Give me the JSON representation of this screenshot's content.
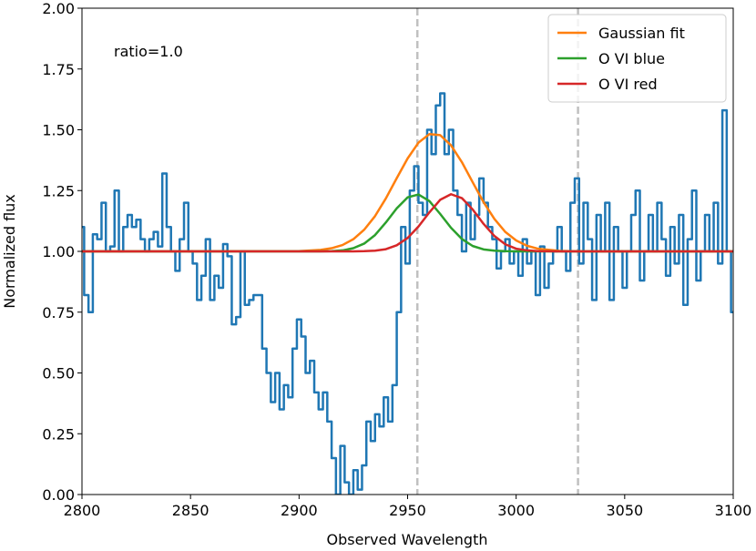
{
  "chart_data": {
    "type": "line",
    "xlabel": "Observed Wavelength",
    "ylabel": "Normalized flux",
    "annotation": "ratio=1.0",
    "xlim": [
      2800,
      3100
    ],
    "xticks": [
      2800,
      2850,
      2900,
      2950,
      3000,
      3050,
      3100
    ],
    "ylim": [
      0,
      2
    ],
    "yticks": [
      {
        "value": 0,
        "label": "0.00"
      },
      {
        "value": 0.25,
        "label": "0.25"
      },
      {
        "value": 0.5,
        "label": "0.50"
      },
      {
        "value": 0.75,
        "label": "0.75"
      },
      {
        "value": 1,
        "label": "1.00"
      },
      {
        "value": 1.25,
        "label": "1.25"
      },
      {
        "value": 1.5,
        "label": "1.50"
      },
      {
        "value": 1.75,
        "label": "1.75"
      },
      {
        "value": 2,
        "label": "2.00"
      }
    ],
    "vlines": [
      2954.5,
      3028.5
    ],
    "vline_color": "#c0c0c0",
    "legend": "upper right",
    "series": [
      {
        "color": "#1f77b4",
        "step": true,
        "x": [
          2800,
          2802,
          2804,
          2806,
          2808,
          2810,
          2812,
          2814,
          2816,
          2818,
          2820,
          2822,
          2824,
          2826,
          2828,
          2830,
          2832,
          2834,
          2836,
          2838,
          2840,
          2842,
          2844,
          2846,
          2848,
          2850,
          2852,
          2854,
          2856,
          2858,
          2860,
          2862,
          2864,
          2866,
          2868,
          2870,
          2872,
          2874,
          2876,
          2878,
          2880,
          2882,
          2884,
          2886,
          2888,
          2890,
          2892,
          2894,
          2896,
          2898,
          2900,
          2902,
          2904,
          2906,
          2908,
          2910,
          2912,
          2914,
          2916,
          2918,
          2920,
          2922,
          2924,
          2926,
          2928,
          2930,
          2932,
          2934,
          2936,
          2938,
          2940,
          2942,
          2944,
          2946,
          2948,
          2950,
          2952,
          2954,
          2956,
          2958,
          2960,
          2962,
          2964,
          2966,
          2968,
          2970,
          2972,
          2974,
          2976,
          2978,
          2980,
          2982,
          2984,
          2986,
          2988,
          2990,
          2992,
          2994,
          2996,
          2998,
          3000,
          3002,
          3004,
          3006,
          3008,
          3010,
          3012,
          3014,
          3016,
          3018,
          3020,
          3022,
          3024,
          3026,
          3028,
          3030,
          3032,
          3034,
          3036,
          3038,
          3040,
          3042,
          3044,
          3046,
          3048,
          3050,
          3052,
          3054,
          3056,
          3058,
          3060,
          3062,
          3064,
          3066,
          3068,
          3070,
          3072,
          3074,
          3076,
          3078,
          3080,
          3082,
          3084,
          3086,
          3088,
          3090,
          3092,
          3094,
          3096,
          3098,
          3100
        ],
        "values": [
          1.1,
          0.82,
          0.75,
          1.07,
          1.05,
          1.2,
          1.0,
          1.02,
          1.25,
          1.0,
          1.1,
          1.15,
          1.1,
          1.13,
          1.05,
          1.0,
          1.05,
          1.08,
          1.02,
          1.32,
          1.1,
          1.0,
          0.92,
          1.05,
          1.2,
          1.0,
          0.95,
          0.8,
          0.9,
          1.05,
          0.8,
          0.9,
          0.85,
          1.03,
          0.98,
          0.7,
          0.73,
          1.0,
          0.78,
          0.8,
          0.82,
          0.82,
          0.6,
          0.5,
          0.38,
          0.5,
          0.35,
          0.45,
          0.4,
          0.6,
          0.72,
          0.65,
          0.5,
          0.55,
          0.42,
          0.35,
          0.42,
          0.3,
          0.15,
          0.0,
          0.2,
          0.05,
          0.0,
          0.1,
          0.02,
          0.12,
          0.3,
          0.22,
          0.33,
          0.28,
          0.4,
          0.3,
          0.45,
          0.75,
          1.1,
          0.95,
          1.25,
          1.35,
          1.2,
          1.15,
          1.5,
          1.4,
          1.6,
          1.65,
          1.4,
          1.5,
          1.25,
          1.15,
          1.0,
          1.2,
          1.05,
          1.15,
          1.3,
          1.2,
          1.1,
          1.05,
          0.93,
          1.0,
          1.05,
          0.95,
          1.0,
          0.9,
          1.05,
          0.95,
          1.0,
          0.82,
          1.02,
          0.85,
          0.95,
          1.0,
          1.1,
          1.0,
          0.92,
          1.2,
          1.3,
          0.95,
          1.2,
          1.05,
          0.8,
          1.15,
          1.0,
          1.2,
          0.8,
          1.1,
          1.0,
          0.85,
          1.0,
          1.15,
          1.25,
          0.88,
          1.0,
          1.15,
          1.0,
          1.2,
          1.05,
          0.9,
          1.1,
          0.95,
          1.15,
          0.78,
          1.05,
          1.25,
          0.88,
          1.0,
          1.15,
          1.0,
          1.2,
          0.95,
          1.58,
          1.0,
          0.75
        ]
      },
      {
        "name": "Gaussian fit",
        "color": "#ff7f0e",
        "x": [
          2800,
          2900,
          2910,
          2915,
          2920,
          2925,
          2930,
          2935,
          2940,
          2945,
          2950,
          2955,
          2960,
          2965,
          2970,
          2975,
          2980,
          2985,
          2990,
          2995,
          3000,
          3005,
          3010,
          3020,
          3030,
          3100
        ],
        "values": [
          1.0,
          1.001,
          1.006,
          1.013,
          1.026,
          1.05,
          1.089,
          1.145,
          1.218,
          1.301,
          1.382,
          1.447,
          1.482,
          1.478,
          1.436,
          1.367,
          1.284,
          1.202,
          1.133,
          1.08,
          1.045,
          1.023,
          1.011,
          1.002,
          1.0,
          1.0
        ]
      },
      {
        "name": "O VI blue",
        "color": "#2ca02c",
        "x": [
          2800,
          2900,
          2910,
          2915,
          2920,
          2925,
          2930,
          2935,
          2940,
          2945,
          2950,
          2955,
          2960,
          2965,
          2970,
          2975,
          2980,
          2985,
          2990,
          2995,
          3000,
          3005,
          3010,
          3020,
          3030,
          3100
        ],
        "values": [
          1.0,
          1.0,
          1.0,
          1.001,
          1.004,
          1.013,
          1.032,
          1.067,
          1.119,
          1.177,
          1.222,
          1.234,
          1.207,
          1.154,
          1.097,
          1.051,
          1.022,
          1.008,
          1.003,
          1.001,
          1.0,
          1.0,
          1.0,
          1.0,
          1.0,
          1.0
        ]
      },
      {
        "name": "O VI red",
        "color": "#d62728",
        "x": [
          2800,
          2900,
          2910,
          2915,
          2920,
          2925,
          2930,
          2935,
          2940,
          2945,
          2950,
          2955,
          2960,
          2965,
          2970,
          2975,
          2980,
          2985,
          2990,
          2995,
          3000,
          3005,
          3010,
          3020,
          3030,
          3100
        ],
        "values": [
          1.0,
          1.0,
          1.0,
          1.0,
          1.0,
          1.0,
          1.001,
          1.003,
          1.009,
          1.025,
          1.055,
          1.102,
          1.16,
          1.212,
          1.235,
          1.219,
          1.172,
          1.113,
          1.063,
          1.029,
          1.011,
          1.004,
          1.001,
          1.0,
          1.0,
          1.0
        ]
      }
    ]
  }
}
